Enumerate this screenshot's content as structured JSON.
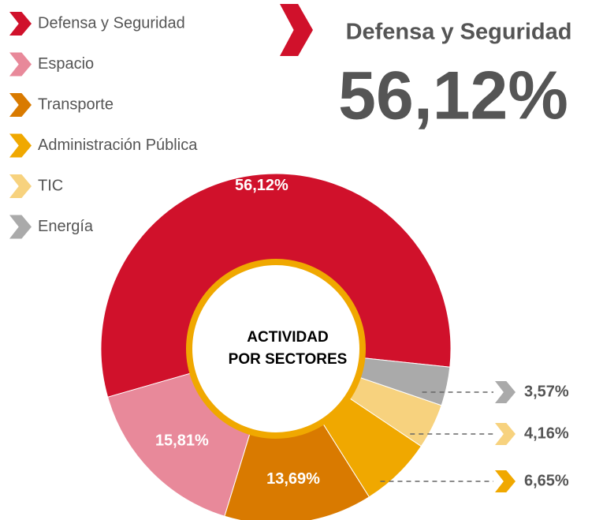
{
  "chart_data": {
    "type": "donut",
    "categories": [
      "Defensa y Seguridad",
      "Espacio",
      "Transporte",
      "Administración Pública",
      "TIC",
      "Energía"
    ],
    "values": [
      56.12,
      15.81,
      13.69,
      6.65,
      4.16,
      3.57
    ],
    "value_labels": [
      "56,12%",
      "15,81%",
      "13,69%",
      "6,65%",
      "4,16%",
      "3,57%"
    ],
    "colors": [
      "#d0112b",
      "#e8899a",
      "#d97a00",
      "#f0a800",
      "#f7d27e",
      "#aaaaaa"
    ],
    "center_label": [
      "ACTIVIDAD",
      "POR SECTORES"
    ],
    "legend": "top-left"
  }
}
